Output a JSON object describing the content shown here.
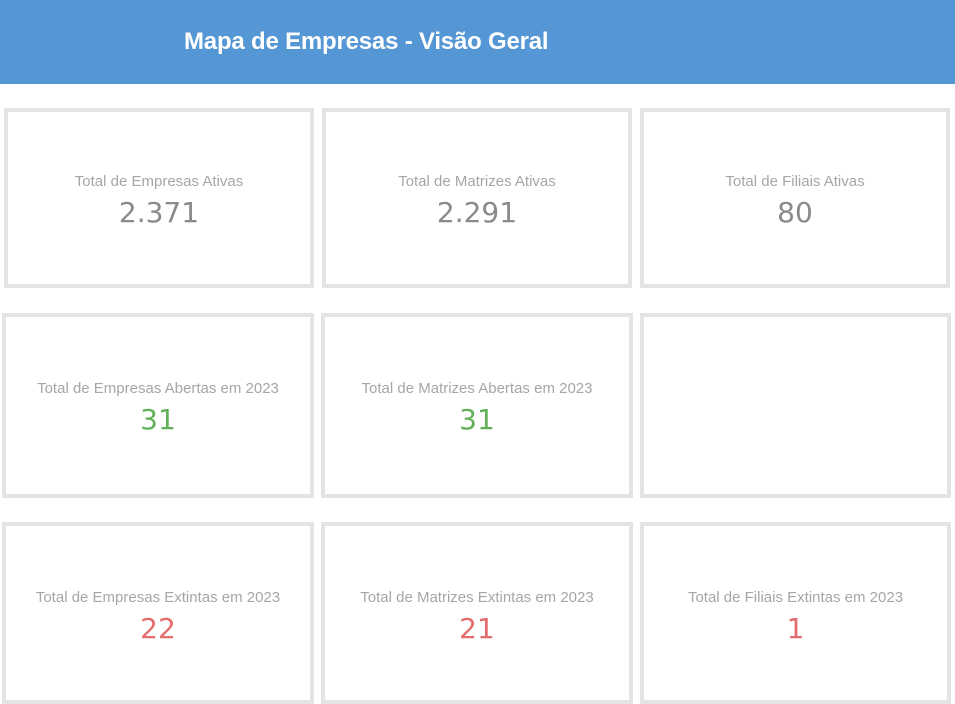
{
  "header": {
    "title": "Mapa de Empresas - Visão Geral"
  },
  "colors": {
    "header_bg": "#5596d5",
    "neutral_value": "#8a8a8a",
    "positive_value": "#62b158",
    "negative_value": "#e46c6c",
    "label_text": "#a6a6a6",
    "card_border": "#e4e4e4"
  },
  "rows": {
    "ativas": {
      "empresas": {
        "label": "Total de Empresas Ativas",
        "value": "2.371"
      },
      "matrizes": {
        "label": "Total de Matrizes Ativas",
        "value": "2.291"
      },
      "filiais": {
        "label": "Total de Filiais Ativas",
        "value": "80"
      }
    },
    "abertas": {
      "empresas": {
        "label": "Total de Empresas Abertas em 2023",
        "value": "31"
      },
      "matrizes": {
        "label": "Total de Matrizes Abertas em 2023",
        "value": "31"
      }
    },
    "extintas": {
      "empresas": {
        "label": "Total de Empresas Extintas em 2023",
        "value": "22"
      },
      "matrizes": {
        "label": "Total de Matrizes Extintas em 2023",
        "value": "21"
      },
      "filiais": {
        "label": "Total de Filiais Extintas em 2023",
        "value": "1"
      }
    }
  }
}
